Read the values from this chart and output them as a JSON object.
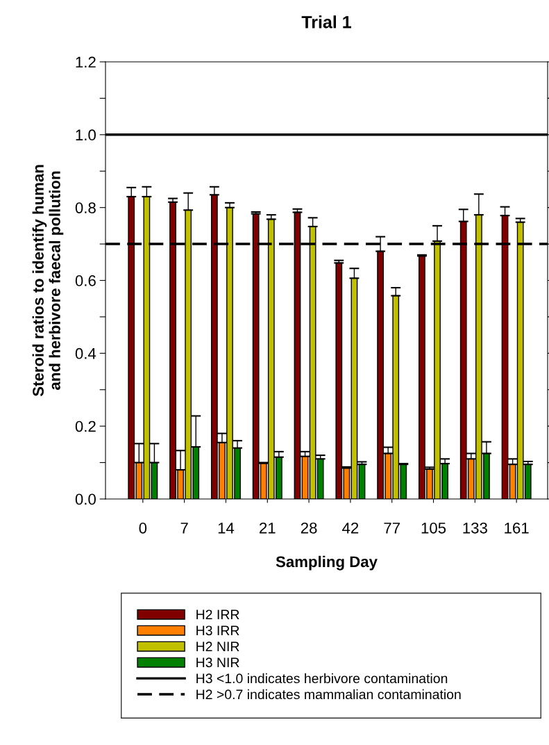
{
  "chart_data": {
    "type": "bar",
    "title": "Trial 1",
    "xlabel": "Sampling Day",
    "ylabel": "Steroid ratios to identify human\nand herbivore faecal pollution",
    "categories": [
      "0",
      "7",
      "14",
      "21",
      "28",
      "42",
      "77",
      "105",
      "133",
      "161"
    ],
    "series": [
      {
        "name": "H2 IRR",
        "color": "#800000",
        "values": [
          0.83,
          0.815,
          0.835,
          0.783,
          0.787,
          0.648,
          0.68,
          0.667,
          0.762,
          0.778
        ],
        "errors": [
          [
            0.83,
            0.855
          ],
          [
            0.815,
            0.825
          ],
          [
            0.835,
            0.857
          ],
          [
            0.783,
            0.788
          ],
          [
            0.787,
            0.796
          ],
          [
            0.648,
            0.655
          ],
          [
            0.68,
            0.72
          ],
          [
            0.667,
            0.67
          ],
          [
            0.762,
            0.795
          ],
          [
            0.778,
            0.802
          ]
        ]
      },
      {
        "name": "H3 IRR",
        "color": "#ff8000",
        "values": [
          0.1,
          0.08,
          0.155,
          0.098,
          0.117,
          0.085,
          0.125,
          0.082,
          0.11,
          0.095
        ],
        "errors": [
          [
            0.1,
            0.152
          ],
          [
            0.08,
            0.133
          ],
          [
            0.155,
            0.18
          ],
          [
            0.098,
            0.1
          ],
          [
            0.117,
            0.13
          ],
          [
            0.085,
            0.088
          ],
          [
            0.125,
            0.142
          ],
          [
            0.082,
            0.087
          ],
          [
            0.11,
            0.125
          ],
          [
            0.095,
            0.11
          ]
        ]
      },
      {
        "name": "H2 NIR",
        "color": "#c0c000",
        "values": [
          0.83,
          0.793,
          0.8,
          0.768,
          0.748,
          0.606,
          0.558,
          0.708,
          0.78,
          0.76
        ],
        "errors": [
          [
            0.83,
            0.857
          ],
          [
            0.793,
            0.84
          ],
          [
            0.8,
            0.813
          ],
          [
            0.768,
            0.78
          ],
          [
            0.748,
            0.772
          ],
          [
            0.606,
            0.633
          ],
          [
            0.558,
            0.58
          ],
          [
            0.708,
            0.75
          ],
          [
            0.78,
            0.837
          ],
          [
            0.76,
            0.77
          ]
        ]
      },
      {
        "name": "H3 NIR",
        "color": "#008000",
        "values": [
          0.1,
          0.143,
          0.14,
          0.115,
          0.11,
          0.095,
          0.095,
          0.097,
          0.125,
          0.095
        ],
        "errors": [
          [
            0.1,
            0.152
          ],
          [
            0.143,
            0.228
          ],
          [
            0.14,
            0.16
          ],
          [
            0.115,
            0.13
          ],
          [
            0.11,
            0.12
          ],
          [
            0.095,
            0.102
          ],
          [
            0.095,
            0.097
          ],
          [
            0.097,
            0.11
          ],
          [
            0.125,
            0.157
          ],
          [
            0.095,
            0.103
          ]
        ]
      }
    ],
    "ylim": [
      0,
      1.2
    ],
    "yticks": [
      {
        "value": 0,
        "label": "0.0"
      },
      {
        "value": 0.1,
        "label": null
      },
      {
        "value": 0.2,
        "label": "0.2"
      },
      {
        "value": 0.3,
        "label": null
      },
      {
        "value": 0.4,
        "label": "0.4"
      },
      {
        "value": 0.5,
        "label": null
      },
      {
        "value": 0.6,
        "label": "0.6"
      },
      {
        "value": 0.7,
        "label": null
      },
      {
        "value": 0.8,
        "label": "0.8"
      },
      {
        "value": 0.9,
        "label": null
      },
      {
        "value": 1.0,
        "label": "1.0"
      },
      {
        "value": 1.1,
        "label": null
      },
      {
        "value": 1.2,
        "label": "1.2"
      }
    ],
    "ref_lines": [
      {
        "axis": "y",
        "value": 1.0,
        "label": "H3 <1.0 indicates herbivore contamination",
        "color": "#000000",
        "line_style": "solid"
      },
      {
        "axis": "y",
        "value": 0.7,
        "label": "H2 >0.7 indicates mammalian contamination",
        "color": "#000000",
        "line_style": "dashed"
      }
    ],
    "legend": "bottom",
    "grid": false
  }
}
